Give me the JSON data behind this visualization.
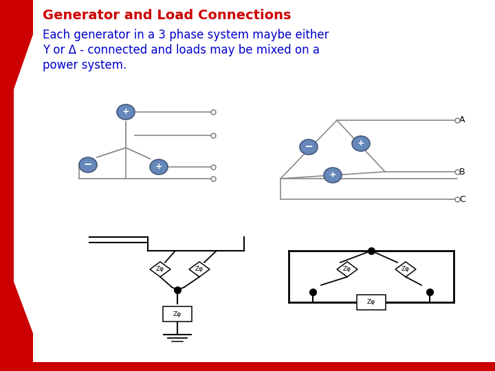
{
  "title": "Generator and Load Connections",
  "title_color": "#CC0000",
  "title_fontsize": 14,
  "body_lines": [
    "Each generator in a 3 phase system maybe either",
    "Y or Δ - connected and loads may be mixed on a",
    "power system."
  ],
  "body_color": "#0000CC",
  "body_fontsize": 12,
  "bg_color": "#FFFFFF",
  "accent_color": "#CC0000",
  "gen_fill": "#6688BB",
  "gen_edge": "#445577",
  "wire_color": "#888888",
  "black": "#000000"
}
